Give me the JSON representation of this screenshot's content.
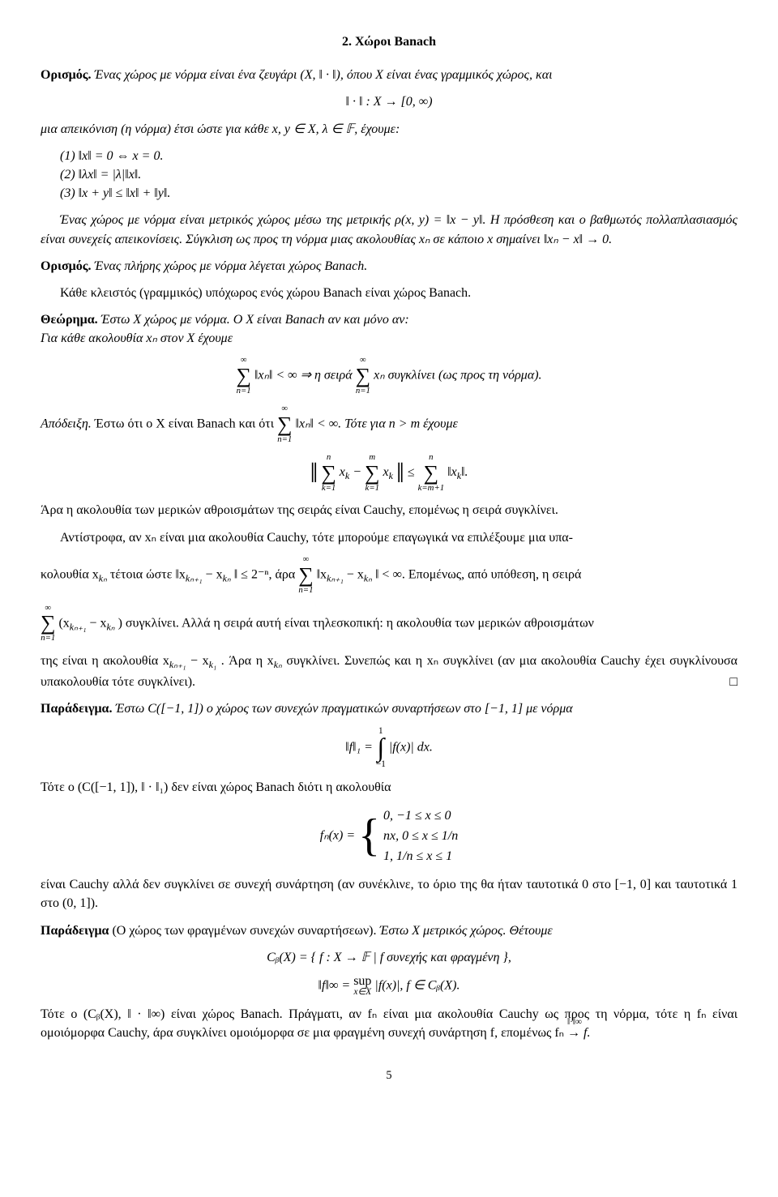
{
  "section_title": "2. Χώροι Banach",
  "def1_head": "Ορισμός.",
  "def1_text": "Ένας χώρος με νόρμα είναι ένα ζευγάρι (X, ‖ · ‖), όπου X είναι ένας γραμμικός χώρος, και",
  "def1_center": "‖ · ‖ : X → [0, ∞)",
  "def1_cont": "μια απεικόνιση (η νόρμα) έτσι ώστε για κάθε x, y ∈ X, λ ∈ 𝔽, έχουμε:",
  "prop1": "(1) ‖x‖ = 0 ⇔ x = 0.",
  "prop2": "(2) ‖λx‖ = |λ|‖x‖.",
  "prop3": "(3) ‖x + y‖ ≤ ‖x‖ + ‖y‖.",
  "metric_para": "Ένας χώρος με νόρμα είναι μετρικός χώρος μέσω της μετρικής ρ(x, y) = ‖x − y‖. Η πρόσθεση και ο βαθμωτός πολλαπλασιασμός είναι συνεχείς απεικονίσεις. Σύγκλιση ως προς τη νόρμα μιας ακολουθίας xₙ σε κάποιο x σημαίνει ‖xₙ − x‖ → 0.",
  "def2_head": "Ορισμός.",
  "def2_text": "Ένας πλήρης χώρος με νόρμα λέγεται χώρος Banach.",
  "closed_sub": "Κάθε κλειστός (γραμμικός) υπόχωρος ενός χώρου Banach είναι χώρος Banach.",
  "thm_head": "Θεώρημα.",
  "thm_text1": "Έστω X χώρος με νόρμα. Ο X είναι Banach αν και μόνο αν:",
  "thm_text2": "Για κάθε ακολουθία xₙ στον X έχουμε",
  "thm_mid1": "‖xₙ‖ < ∞ ⇒ η σειρά",
  "thm_mid2": "xₙ συγκλίνει (ως προς τη νόρμα).",
  "proof_head": "Απόδειξη.",
  "proof_text1": "Έστω ότι ο X είναι Banach και ότι",
  "proof_text1b": "‖xₙ‖ < ∞. Τότε για n > m έχουμε",
  "proof_after_ineq": "Άρα η ακολουθία των μερικών αθροισμάτων της σειράς είναι Cauchy, επομένως η σειρά συγκλίνει.",
  "proof_conv1": "Αντίστροφα, αν xₙ είναι μια ακολουθία Cauchy, τότε μπορούμε επαγωγικά να επιλέξουμε μια υπα-",
  "proof_conv2a": "κολουθία x",
  "proof_conv2b": " τέτοια ώστε ‖x",
  "proof_conv2c": " − x",
  "proof_conv2d": "‖ ≤ 2⁻ⁿ, άρα",
  "proof_conv2e": "‖x",
  "proof_conv2f": " − x",
  "proof_conv2g": "‖ < ∞.  Επομένως, από υπόθεση, η σειρά",
  "proof_conv3a": "(x",
  "proof_conv3b": " − x",
  "proof_conv3c": ") συγκλίνει. Αλλά η σειρά αυτή είναι τηλεσκοπική: η ακολουθία των μερικών αθροισμάτων",
  "proof_conv4": "της είναι η ακολουθία x",
  "proof_conv4b": " − x",
  "proof_conv4c": ". Άρα η x",
  "proof_conv4d": " συγκλίνει. Συνεπώς και η xₙ συγκλίνει (αν μια ακολουθία Cauchy έχει συγκλίνουσα υπακολουθία τότε συγκλίνει).",
  "ex1_head": "Παράδειγμα.",
  "ex1_text": "Έστω C([−1, 1]) ο χώρος των συνεχών πραγματικών συναρτήσεων στο [−1, 1] με νόρμα",
  "ex1_norm_lhs": "‖f‖₁ =",
  "ex1_norm_rhs": "|f(x)| dx.",
  "ex1_after": "Τότε ο (C([−1, 1]), ‖ · ‖₁) δεν είναι χώρος Banach διότι η ακολουθία",
  "fn_lhs": "fₙ(x) =",
  "case1": "0,     −1 ≤ x ≤ 0",
  "case2": "nx,   0 ≤ x ≤ 1/n",
  "case3": "1,     1/n ≤ x ≤ 1",
  "ex1_conclusion": "είναι Cauchy αλλά δεν συγκλίνει σε συνεχή συνάρτηση (αν συνέκλινε, το όριο της θα ήταν ταυτοτικά 0 στο [−1, 0] και ταυτοτικά 1 στο (0, 1]).",
  "ex2_head": "Παράδειγμα",
  "ex2_paren": "(Ο χώρος των φραγμένων συνεχών συναρτήσεων).",
  "ex2_text": "Έστω X μετρικός χώρος. Θέτουμε",
  "cb_def": "Cᵦ(X) = { f : X → 𝔽 | f συνεχής και φραγμένη },",
  "sup_norm_lhs": "‖f‖∞ =",
  "sup_norm_rhs": "|f(x)|,  f ∈ Cᵦ(X).",
  "ex2_conclusion_a": "Τότε ο (Cᵦ(X), ‖ · ‖∞) είναι χώρος Banach. Πράγματι, αν fₙ είναι μια ακολουθία Cauchy ως προς τη νόρμα, τότε η fₙ είναι ομοιόμορφα Cauchy, άρα συγκλίνει ομοιόμορφα σε μια φραγμένη συνεχή συνάρτηση f, επομένως fₙ",
  "ex2_conclusion_arrow_top": "‖·‖∞",
  "ex2_conclusion_arrow": "→",
  "ex2_conclusion_b": " f.",
  "sum_top": "∞",
  "sum_bot": "n=1",
  "sum_bot_k1": "k=1",
  "sum_bot_km1": "k=m+1",
  "int_top": "1",
  "int_bot": "−1",
  "sup_label": "sup",
  "sup_under": "x∈X",
  "k_n": "kₙ",
  "k_n1": "kₙ₊₁",
  "k_1": "k₁",
  "page": "5"
}
